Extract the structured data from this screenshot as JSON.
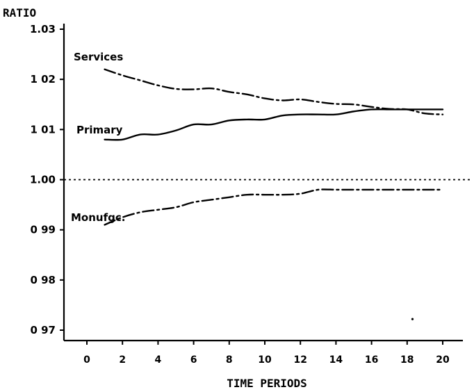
{
  "chart_data": {
    "type": "line",
    "ylabel": "RATIO",
    "xlabel": "TIME PERIODS",
    "ylim": [
      0.97,
      1.03
    ],
    "xlim": [
      0,
      20
    ],
    "yticks": [
      "0 97",
      "0 98",
      "0 99",
      "1.00",
      "1 01",
      "1 02",
      "1.03"
    ],
    "ytick_values": [
      0.97,
      0.98,
      0.99,
      1.0,
      1.01,
      1.02,
      1.03
    ],
    "xticks": [
      "0",
      "2",
      "4",
      "6",
      "8",
      "10",
      "12",
      "14",
      "16",
      "18",
      "20"
    ],
    "xtick_values": [
      0,
      2,
      4,
      6,
      8,
      10,
      12,
      14,
      16,
      18,
      20
    ],
    "reference_line": {
      "y": 1.0,
      "style": "dotted"
    },
    "grid": false,
    "series": [
      {
        "name": "Services",
        "line_style": "dash-dot",
        "x": [
          1,
          2,
          3,
          4,
          5,
          6,
          7,
          8,
          9,
          10,
          11,
          12,
          13,
          14,
          15,
          16,
          17,
          18,
          19,
          20
        ],
        "y": [
          1.022,
          1.0208,
          1.0198,
          1.0188,
          1.0181,
          1.018,
          1.0182,
          1.0175,
          1.017,
          1.0162,
          1.0158,
          1.016,
          1.0155,
          1.0151,
          1.015,
          1.0145,
          1.0141,
          1.014,
          1.0132,
          1.013
        ]
      },
      {
        "name": "Primary",
        "line_style": "solid",
        "x": [
          1,
          2,
          3,
          4,
          5,
          6,
          7,
          8,
          9,
          10,
          11,
          12,
          13,
          14,
          15,
          16,
          17,
          18,
          19,
          20
        ],
        "y": [
          1.008,
          1.008,
          1.009,
          1.009,
          1.0098,
          1.011,
          1.011,
          1.0118,
          1.012,
          1.012,
          1.0128,
          1.013,
          1.013,
          1.013,
          1.0136,
          1.014,
          1.014,
          1.014,
          1.014,
          1.014
        ]
      },
      {
        "name": "Monufgc.",
        "line_style": "dash-dot",
        "x": [
          1,
          2,
          3,
          4,
          5,
          6,
          7,
          8,
          9,
          10,
          11,
          12,
          13,
          14,
          15,
          16,
          17,
          18,
          19,
          20
        ],
        "y": [
          0.991,
          0.9925,
          0.9935,
          0.994,
          0.9945,
          0.9955,
          0.996,
          0.9965,
          0.997,
          0.997,
          0.997,
          0.9972,
          0.998,
          0.998,
          0.998,
          0.998,
          0.998,
          0.998,
          0.998,
          0.998
        ]
      }
    ],
    "stray_mark": {
      "x": 18.3,
      "y": 0.9722
    }
  }
}
